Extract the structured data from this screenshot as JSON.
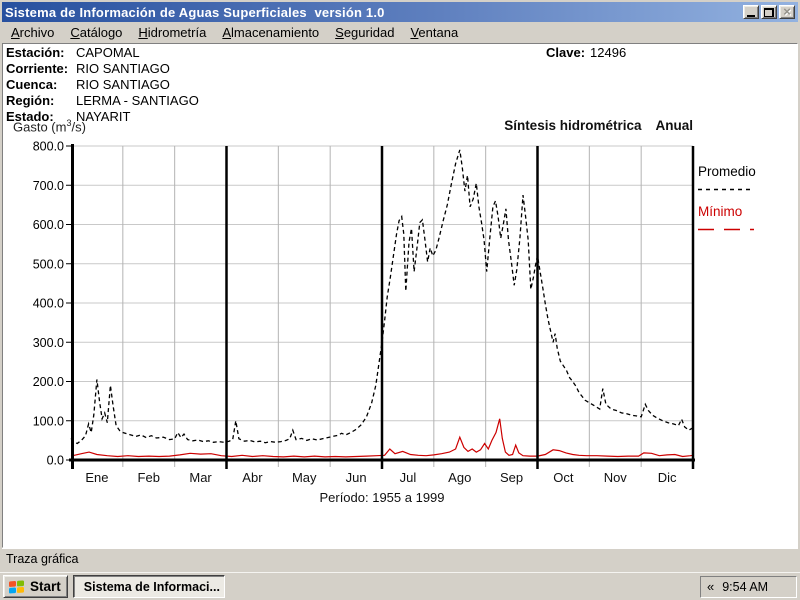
{
  "window": {
    "title": "Sistema de Información de Aguas Superficiales  versión 1.0",
    "controls": {
      "minimize": "minimize",
      "restore": "restore",
      "close": "close"
    }
  },
  "menu": {
    "items": [
      {
        "label": "Archivo",
        "u": 0
      },
      {
        "label": "Catálogo",
        "u": 0
      },
      {
        "label": "Hidrometría",
        "u": 0
      },
      {
        "label": "Almacenamiento",
        "u": 0
      },
      {
        "label": "Seguridad",
        "u": 0
      },
      {
        "label": "Ventana",
        "u": 0
      }
    ]
  },
  "station": {
    "rows": [
      {
        "label": "Estación:",
        "value": "CAPOMAL"
      },
      {
        "label": "Corriente:",
        "value": "RIO SANTIAGO"
      },
      {
        "label": "Cuenca:",
        "value": "RIO SANTIAGO"
      },
      {
        "label": "Región:",
        "value": "LERMA - SANTIAGO"
      },
      {
        "label": "Estado:",
        "value": "NAYARIT"
      }
    ],
    "clave_label": "Clave:",
    "clave_value": "12496"
  },
  "chart_header": {
    "ylabel_prefix": "Gasto (m",
    "ylabel_sup": "3",
    "ylabel_suffix": "/s)",
    "title": "Síntesis hidrométrica",
    "mode": "Anual"
  },
  "legend": [
    {
      "label": "Promedio",
      "color": "#000000",
      "dash": "4 4"
    },
    {
      "label": "Mínimo",
      "color": "#cc0000",
      "dash": "16 10"
    }
  ],
  "chart_data": {
    "type": "line",
    "title": "Síntesis hidrométrica Anual",
    "ylabel": "Gasto (m3/s)",
    "xlabel": "",
    "ylim": [
      0,
      800
    ],
    "ytick_step": 100,
    "yticks": [
      "800.0",
      "700.0",
      "600.0",
      "500.0",
      "400.0",
      "300.0",
      "200.0",
      "100.0",
      "0.0"
    ],
    "months": [
      "Ene",
      "Feb",
      "Mar",
      "Abr",
      "May",
      "Jun",
      "Jul",
      "Ago",
      "Sep",
      "Oct",
      "Nov",
      "Dic"
    ],
    "quarter_lines": [
      3,
      6,
      9,
      12
    ],
    "grid": true,
    "legend_position": "right",
    "period_label": "Período: 1955 a 1999",
    "series": [
      {
        "name": "Promedio",
        "color": "#000000",
        "dash": "4 3",
        "width": 1.3,
        "points": [
          [
            0,
            55
          ],
          [
            0.06,
            46
          ],
          [
            0.12,
            42
          ],
          [
            0.2,
            50
          ],
          [
            0.28,
            62
          ],
          [
            0.34,
            92
          ],
          [
            0.39,
            70
          ],
          [
            0.44,
            115
          ],
          [
            0.5,
            205
          ],
          [
            0.55,
            150
          ],
          [
            0.6,
            105
          ],
          [
            0.65,
            120
          ],
          [
            0.7,
            95
          ],
          [
            0.76,
            190
          ],
          [
            0.81,
            140
          ],
          [
            0.87,
            88
          ],
          [
            0.94,
            75
          ],
          [
            1,
            70
          ],
          [
            1.12,
            65
          ],
          [
            1.25,
            60
          ],
          [
            1.35,
            64
          ],
          [
            1.45,
            57
          ],
          [
            1.55,
            62
          ],
          [
            1.65,
            56
          ],
          [
            1.78,
            58
          ],
          [
            1.9,
            52
          ],
          [
            2,
            54
          ],
          [
            2.06,
            70
          ],
          [
            2.12,
            57
          ],
          [
            2.18,
            66
          ],
          [
            2.25,
            52
          ],
          [
            2.35,
            49
          ],
          [
            2.45,
            51
          ],
          [
            2.55,
            47
          ],
          [
            2.65,
            49
          ],
          [
            2.75,
            45
          ],
          [
            2.85,
            47
          ],
          [
            2.95,
            45
          ],
          [
            3.05,
            48
          ],
          [
            3.12,
            52
          ],
          [
            3.18,
            100
          ],
          [
            3.24,
            54
          ],
          [
            3.35,
            48
          ],
          [
            3.45,
            50
          ],
          [
            3.55,
            46
          ],
          [
            3.65,
            48
          ],
          [
            3.75,
            44
          ],
          [
            3.85,
            47
          ],
          [
            3.95,
            45
          ],
          [
            4.05,
            47
          ],
          [
            4.15,
            50
          ],
          [
            4.22,
            54
          ],
          [
            4.28,
            76
          ],
          [
            4.34,
            52
          ],
          [
            4.45,
            55
          ],
          [
            4.55,
            50
          ],
          [
            4.65,
            54
          ],
          [
            4.75,
            51
          ],
          [
            4.85,
            54
          ],
          [
            4.95,
            57
          ],
          [
            5.05,
            60
          ],
          [
            5.15,
            63
          ],
          [
            5.22,
            68
          ],
          [
            5.3,
            64
          ],
          [
            5.4,
            70
          ],
          [
            5.5,
            78
          ],
          [
            5.6,
            90
          ],
          [
            5.7,
            110
          ],
          [
            5.8,
            145
          ],
          [
            5.88,
            190
          ],
          [
            5.94,
            245
          ],
          [
            6,
            300
          ],
          [
            6.05,
            355
          ],
          [
            6.1,
            415
          ],
          [
            6.16,
            465
          ],
          [
            6.22,
            520
          ],
          [
            6.28,
            575
          ],
          [
            6.33,
            610
          ],
          [
            6.38,
            620
          ],
          [
            6.42,
            575
          ],
          [
            6.46,
            430
          ],
          [
            6.52,
            555
          ],
          [
            6.57,
            590
          ],
          [
            6.62,
            480
          ],
          [
            6.68,
            545
          ],
          [
            6.73,
            605
          ],
          [
            6.78,
            612
          ],
          [
            6.83,
            560
          ],
          [
            6.88,
            505
          ],
          [
            6.93,
            540
          ],
          [
            6.98,
            520
          ],
          [
            7.04,
            535
          ],
          [
            7.1,
            565
          ],
          [
            7.18,
            610
          ],
          [
            7.26,
            650
          ],
          [
            7.34,
            705
          ],
          [
            7.42,
            755
          ],
          [
            7.5,
            790
          ],
          [
            7.55,
            745
          ],
          [
            7.6,
            685
          ],
          [
            7.65,
            725
          ],
          [
            7.7,
            645
          ],
          [
            7.76,
            665
          ],
          [
            7.82,
            705
          ],
          [
            7.87,
            645
          ],
          [
            7.92,
            605
          ],
          [
            7.97,
            560
          ],
          [
            8.02,
            480
          ],
          [
            8.08,
            565
          ],
          [
            8.14,
            645
          ],
          [
            8.19,
            660
          ],
          [
            8.24,
            620
          ],
          [
            8.29,
            565
          ],
          [
            8.34,
            600
          ],
          [
            8.39,
            640
          ],
          [
            8.44,
            560
          ],
          [
            8.5,
            500
          ],
          [
            8.55,
            445
          ],
          [
            8.6,
            485
          ],
          [
            8.66,
            565
          ],
          [
            8.72,
            675
          ],
          [
            8.77,
            620
          ],
          [
            8.82,
            560
          ],
          [
            8.87,
            435
          ],
          [
            8.92,
            465
          ],
          [
            8.96,
            495
          ],
          [
            9,
            520
          ],
          [
            9.05,
            480
          ],
          [
            9.1,
            440
          ],
          [
            9.15,
            398
          ],
          [
            9.2,
            360
          ],
          [
            9.25,
            330
          ],
          [
            9.3,
            300
          ],
          [
            9.34,
            322
          ],
          [
            9.38,
            285
          ],
          [
            9.44,
            252
          ],
          [
            9.5,
            240
          ],
          [
            9.56,
            228
          ],
          [
            9.62,
            210
          ],
          [
            9.68,
            200
          ],
          [
            9.74,
            188
          ],
          [
            9.8,
            172
          ],
          [
            9.86,
            162
          ],
          [
            9.92,
            152
          ],
          [
            10,
            146
          ],
          [
            10.1,
            138
          ],
          [
            10.2,
            130
          ],
          [
            10.26,
            182
          ],
          [
            10.32,
            142
          ],
          [
            10.42,
            130
          ],
          [
            10.52,
            126
          ],
          [
            10.62,
            120
          ],
          [
            10.72,
            118
          ],
          [
            10.82,
            114
          ],
          [
            10.92,
            112
          ],
          [
            11,
            110
          ],
          [
            11.08,
            142
          ],
          [
            11.14,
            126
          ],
          [
            11.22,
            114
          ],
          [
            11.32,
            106
          ],
          [
            11.42,
            100
          ],
          [
            11.52,
            95
          ],
          [
            11.62,
            92
          ],
          [
            11.72,
            88
          ],
          [
            11.78,
            104
          ],
          [
            11.84,
            84
          ],
          [
            11.92,
            76
          ],
          [
            12,
            82
          ]
        ]
      },
      {
        "name": "Mínimo",
        "color": "#cc0000",
        "dash": "",
        "width": 1.2,
        "points": [
          [
            0,
            10
          ],
          [
            0.2,
            16
          ],
          [
            0.35,
            20
          ],
          [
            0.5,
            14
          ],
          [
            0.7,
            11
          ],
          [
            0.9,
            9
          ],
          [
            1.1,
            11
          ],
          [
            1.3,
            9
          ],
          [
            1.5,
            10
          ],
          [
            1.7,
            9
          ],
          [
            1.9,
            10
          ],
          [
            2.1,
            13
          ],
          [
            2.3,
            17
          ],
          [
            2.5,
            15
          ],
          [
            2.7,
            16
          ],
          [
            2.9,
            11
          ],
          [
            3.1,
            9
          ],
          [
            3.3,
            12
          ],
          [
            3.5,
            9
          ],
          [
            3.7,
            11
          ],
          [
            3.9,
            9
          ],
          [
            4.1,
            8
          ],
          [
            4.3,
            10
          ],
          [
            4.5,
            8
          ],
          [
            4.7,
            10
          ],
          [
            4.9,
            8
          ],
          [
            5.1,
            9
          ],
          [
            5.3,
            8
          ],
          [
            5.5,
            9
          ],
          [
            5.7,
            10
          ],
          [
            5.9,
            11
          ],
          [
            6.05,
            12
          ],
          [
            6.15,
            28
          ],
          [
            6.25,
            16
          ],
          [
            6.4,
            22
          ],
          [
            6.55,
            14
          ],
          [
            6.7,
            12
          ],
          [
            6.85,
            11
          ],
          [
            7,
            13
          ],
          [
            7.15,
            16
          ],
          [
            7.3,
            20
          ],
          [
            7.42,
            28
          ],
          [
            7.5,
            58
          ],
          [
            7.58,
            32
          ],
          [
            7.66,
            22
          ],
          [
            7.74,
            28
          ],
          [
            7.82,
            20
          ],
          [
            7.9,
            26
          ],
          [
            7.98,
            42
          ],
          [
            8.05,
            28
          ],
          [
            8.12,
            50
          ],
          [
            8.2,
            70
          ],
          [
            8.27,
            105
          ],
          [
            8.32,
            55
          ],
          [
            8.38,
            20
          ],
          [
            8.45,
            12
          ],
          [
            8.52,
            14
          ],
          [
            8.58,
            38
          ],
          [
            8.64,
            18
          ],
          [
            8.72,
            11
          ],
          [
            8.85,
            10
          ],
          [
            9,
            10
          ],
          [
            9.15,
            14
          ],
          [
            9.3,
            26
          ],
          [
            9.42,
            24
          ],
          [
            9.55,
            18
          ],
          [
            9.68,
            14
          ],
          [
            9.8,
            12
          ],
          [
            9.95,
            11
          ],
          [
            10.15,
            11
          ],
          [
            10.35,
            10
          ],
          [
            10.55,
            9
          ],
          [
            10.75,
            10
          ],
          [
            10.95,
            10
          ],
          [
            11.05,
            18
          ],
          [
            11.2,
            17
          ],
          [
            11.35,
            11
          ],
          [
            11.5,
            13
          ],
          [
            11.65,
            14
          ],
          [
            11.8,
            9
          ],
          [
            11.95,
            11
          ],
          [
            12,
            12
          ]
        ]
      }
    ]
  },
  "footer": {
    "status": "Traza gráfica"
  },
  "taskbar": {
    "start_label": "Start",
    "task_label": "Sistema de Informaci...",
    "tray_chevron": "«",
    "clock": "9:54 AM"
  },
  "colors": {
    "titlebar_left": "#27509f",
    "titlebar_right": "#93b2e0",
    "chrome_gray": "#d4d0c8",
    "grid_gray": "#c9c9c9",
    "minimo_red": "#cc0000"
  }
}
